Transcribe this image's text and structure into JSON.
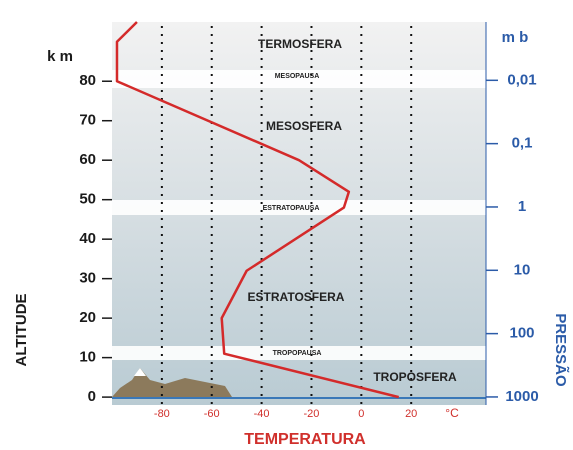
{
  "chart_data": {
    "type": "line",
    "xlabel": "TEMPERATURA",
    "xunit": "°C",
    "ylabel": "ALTITUDE",
    "yunit": "k m",
    "y2label": "PRESSÃO",
    "y2unit": "m b",
    "x": [
      15,
      -55,
      -56,
      -46,
      -7,
      -5,
      -25,
      -98,
      -98,
      -90
    ],
    "values": [
      0,
      11,
      20,
      32,
      48,
      52,
      60,
      80,
      90,
      95
    ],
    "color": "#d42a2a",
    "xlim": [
      -100,
      50
    ],
    "xticks": [
      -80,
      -60,
      -40,
      -20,
      0,
      20
    ],
    "ylim": [
      -2,
      95
    ],
    "yticks": [
      0,
      10,
      20,
      30,
      40,
      50,
      60,
      70,
      80
    ],
    "y2lim": [
      1340,
      0.0012
    ],
    "y2scale": "log",
    "y2ticks": [
      1000,
      100,
      10,
      1,
      {
        "value": 0.1,
        "label": "0,1"
      },
      {
        "value": 0.01,
        "label": "0,01"
      }
    ],
    "grid": true,
    "annotations": [
      "TERMOSFERA",
      "MESOPAUSA",
      "MESOSFERA",
      "ESTRATOPAUSA",
      "ESTRATOSFERA",
      "TROPOPAUSA",
      "TROPOSFERA"
    ]
  }
}
